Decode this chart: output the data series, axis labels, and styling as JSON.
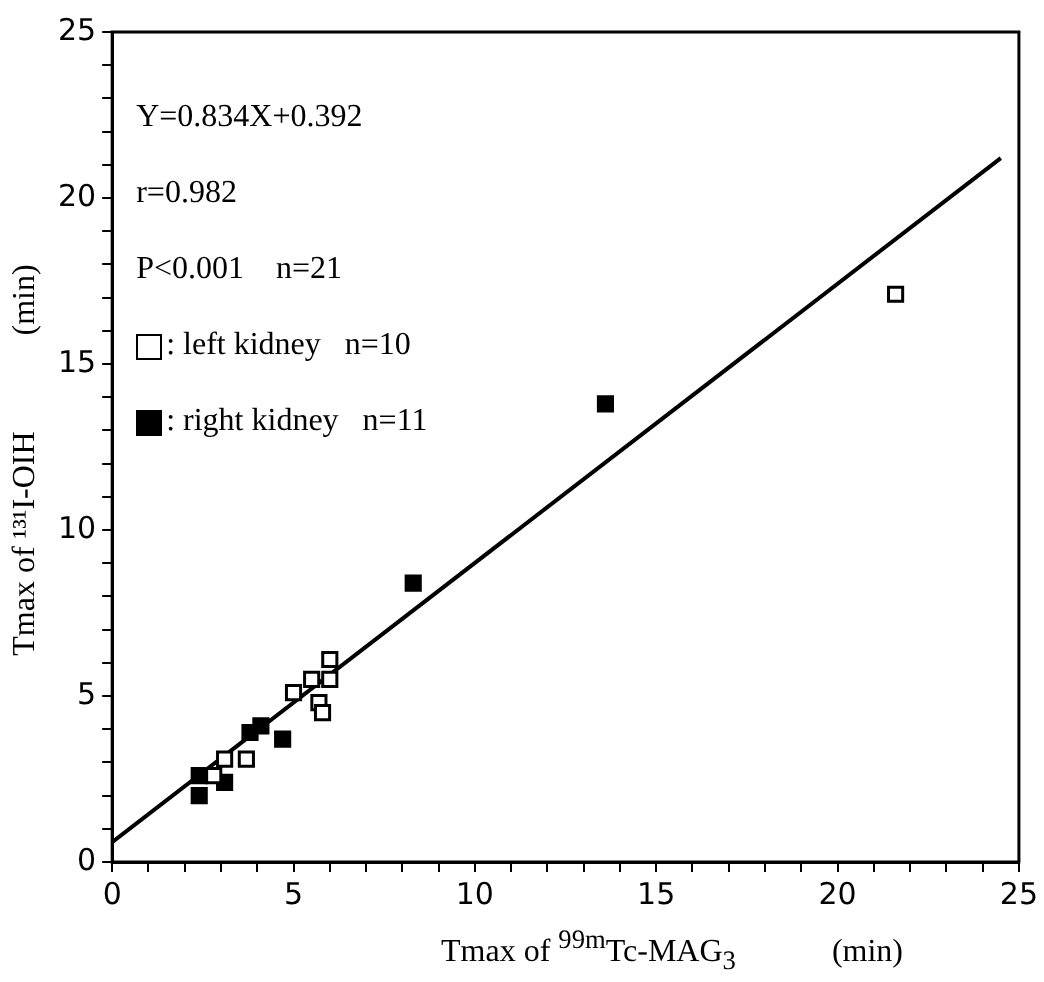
{
  "chart_data": {
    "type": "scatter",
    "xlabel": "Tmax of $^{99m}$Tc-MAG$_{3}$            (min)",
    "ylabel": "Tmax of ¹³¹I-OIH            (min)",
    "annotations": [
      "Y=0.834X+0.392",
      "r=0.982",
      "P<0.001    n=21"
    ],
    "xlim": [
      0,
      25
    ],
    "ylim": [
      0,
      25
    ],
    "xticks": [
      0,
      {
        "value": 1,
        "label": null
      },
      {
        "value": 2,
        "label": null
      },
      {
        "value": 3,
        "label": null
      },
      {
        "value": 4,
        "label": null
      },
      5,
      {
        "value": 6,
        "label": null
      },
      {
        "value": 7,
        "label": null
      },
      {
        "value": 8,
        "label": null
      },
      {
        "value": 9,
        "label": null
      },
      10,
      {
        "value": 11,
        "label": null
      },
      {
        "value": 12,
        "label": null
      },
      {
        "value": 13,
        "label": null
      },
      {
        "value": 14,
        "label": null
      },
      15,
      {
        "value": 16,
        "label": null
      },
      {
        "value": 17,
        "label": null
      },
      {
        "value": 18,
        "label": null
      },
      {
        "value": 19,
        "label": null
      },
      20,
      {
        "value": 21,
        "label": null
      },
      {
        "value": 22,
        "label": null
      },
      {
        "value": 23,
        "label": null
      },
      {
        "value": 24,
        "label": null
      },
      25
    ],
    "yticks": [
      0,
      {
        "value": 1,
        "label": null
      },
      {
        "value": 2,
        "label": null
      },
      {
        "value": 3,
        "label": null
      },
      {
        "value": 4,
        "label": null
      },
      5,
      {
        "value": 6,
        "label": null
      },
      {
        "value": 7,
        "label": null
      },
      {
        "value": 8,
        "label": null
      },
      {
        "value": 9,
        "label": null
      },
      10,
      {
        "value": 11,
        "label": null
      },
      {
        "value": 12,
        "label": null
      },
      {
        "value": 13,
        "label": null
      },
      {
        "value": 14,
        "label": null
      },
      15,
      {
        "value": 16,
        "label": null
      },
      {
        "value": 17,
        "label": null
      },
      {
        "value": 18,
        "label": null
      },
      {
        "value": 19,
        "label": null
      },
      20,
      {
        "value": 21,
        "label": null
      },
      {
        "value": 22,
        "label": null
      },
      {
        "value": 23,
        "label": null
      },
      {
        "value": 24,
        "label": null
      },
      25
    ],
    "grid": false,
    "legend": "top left",
    "marker": "square",
    "series": [
      {
        "name": ": left kidney   n=10",
        "color": "#000000",
        "x": [
          2.8,
          3.1,
          3.7,
          5.0,
          5.5,
          6.0,
          6.0,
          5.7,
          5.8,
          21.6
        ],
        "values": [
          2.6,
          3.1,
          3.1,
          5.1,
          5.5,
          6.1,
          5.5,
          4.8,
          4.5,
          17.1
        ]
      },
      {
        "name": ": right kidney   n=11",
        "color": "#000000",
        "x": [
          2.4,
          2.4,
          3.1,
          3.8,
          4.1,
          4.7,
          8.3,
          13.6
        ],
        "values": [
          2.0,
          2.6,
          2.4,
          3.9,
          4.1,
          3.7,
          8.4,
          13.8
        ]
      },
      {
        "type": "line",
        "marker": "none",
        "color": "#000000",
        "x": [
          0,
          24.5
        ],
        "values": [
          0.6,
          21.2
        ]
      }
    ]
  }
}
